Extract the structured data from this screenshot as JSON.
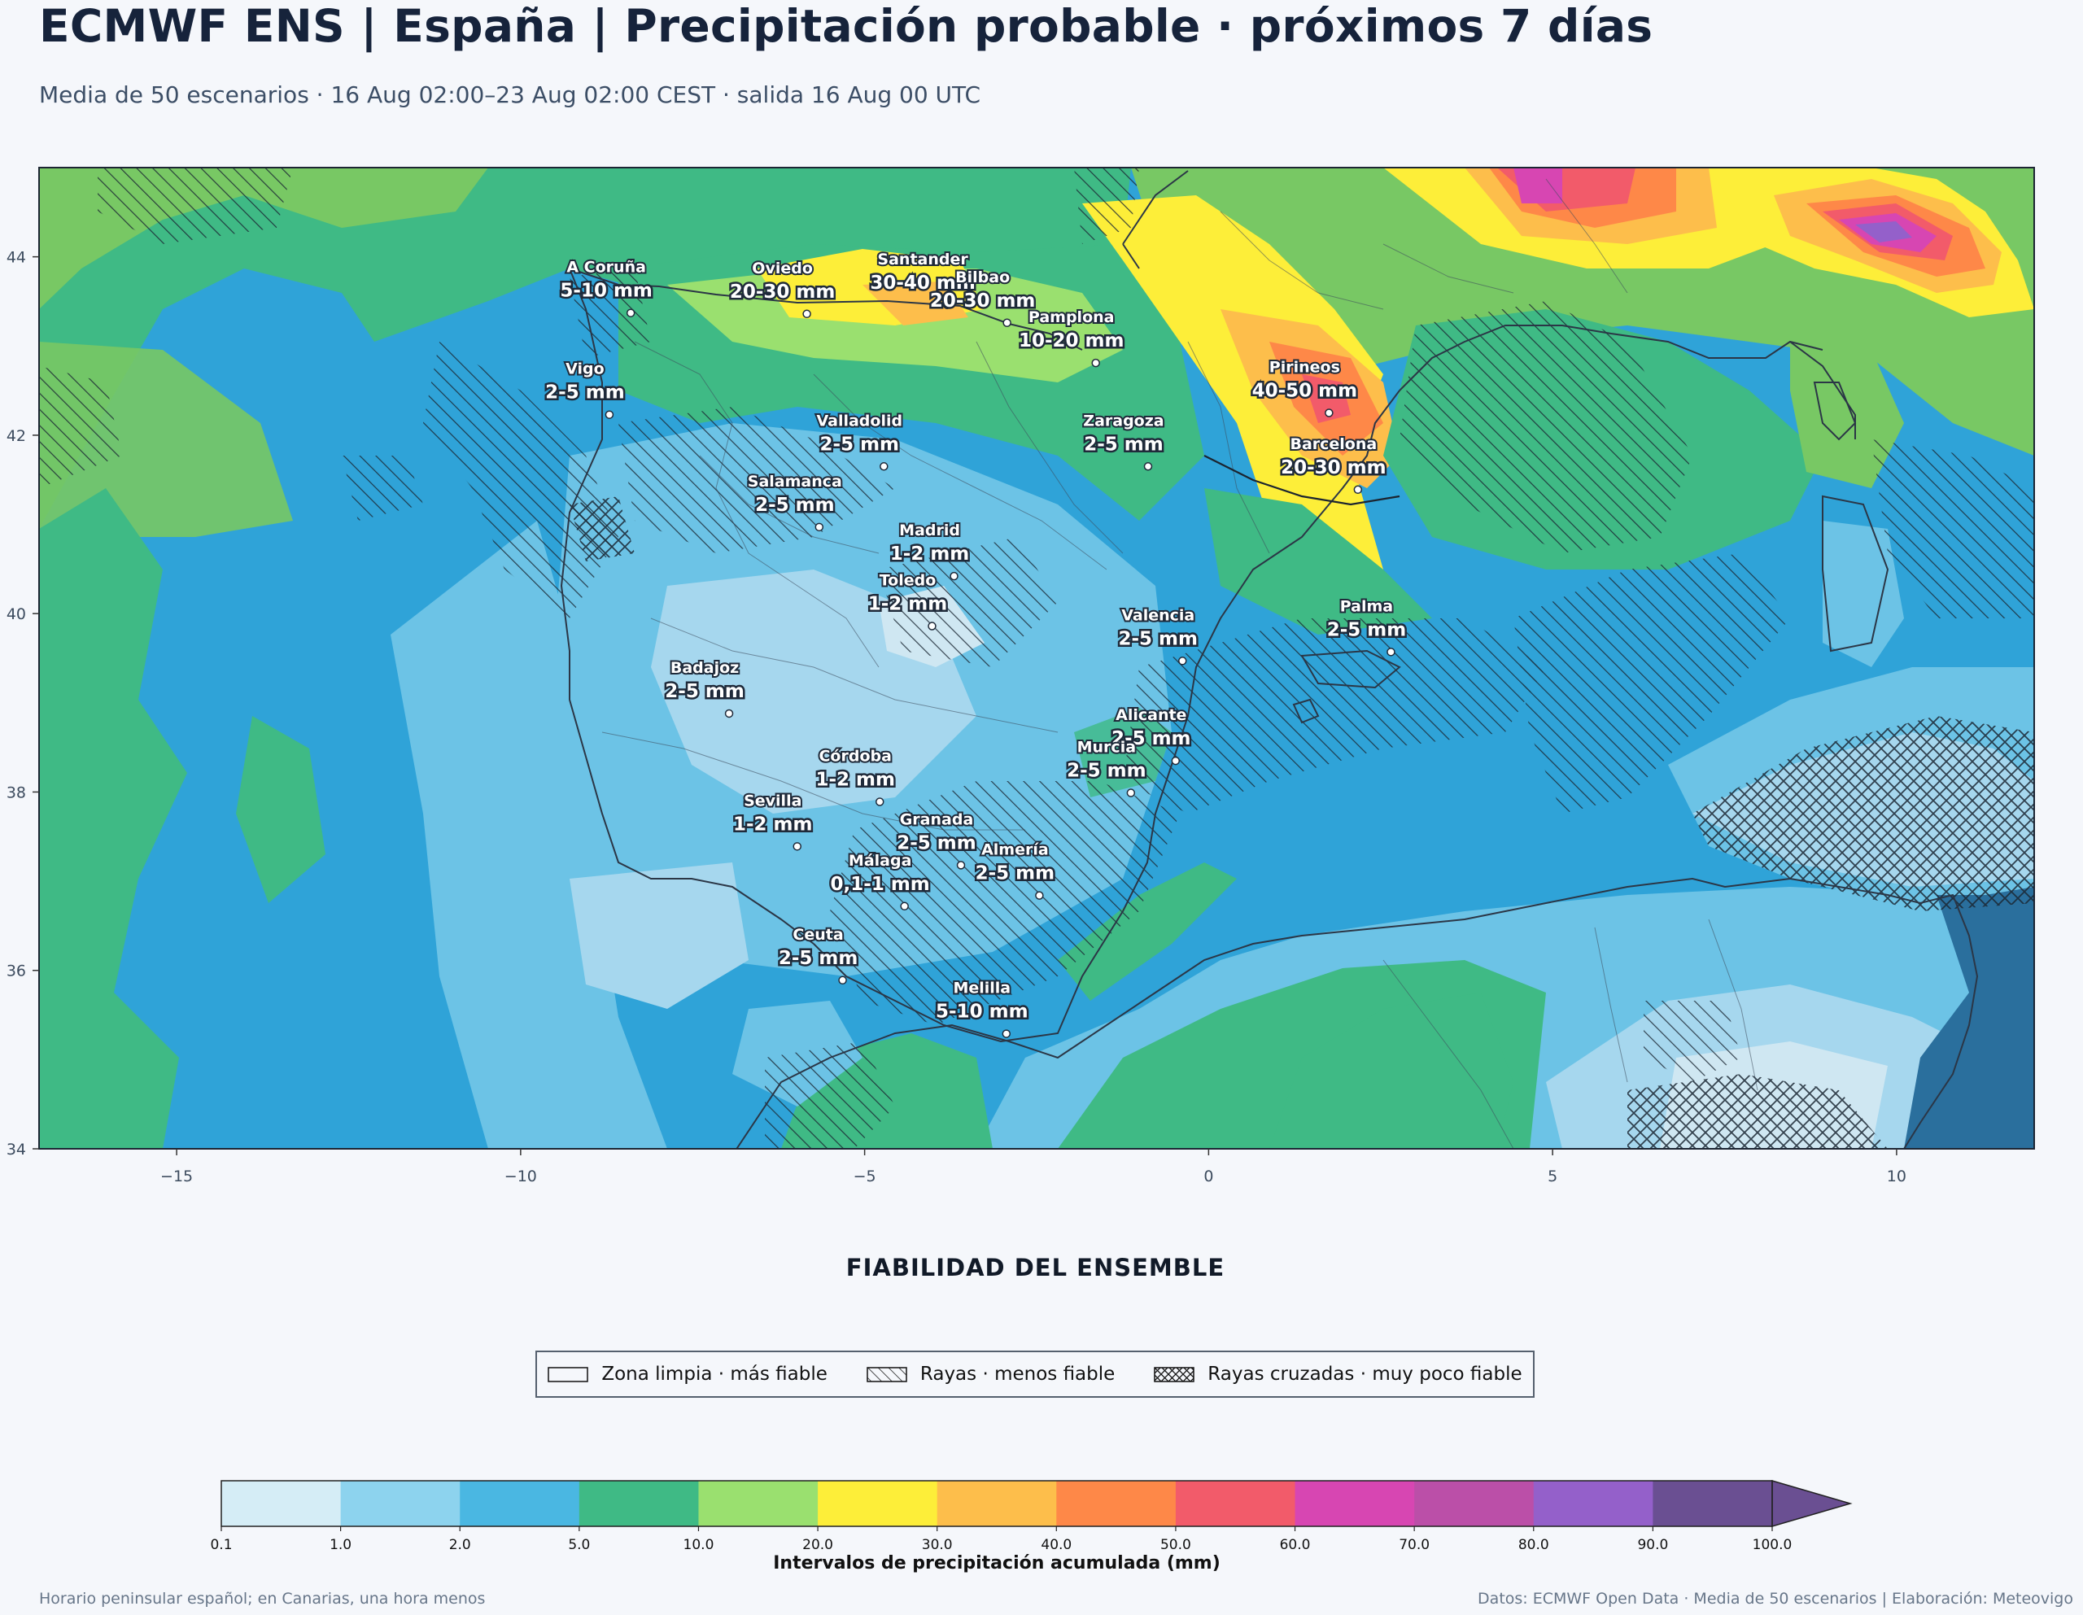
{
  "header": {
    "title": "ECMWF ENS | España | Precipitación probable · próximos 7 días",
    "subtitle": "Media de 50 escenarios · 16 Aug 02:00–23 Aug 02:00 CEST · salida 16 Aug 00 UTC"
  },
  "map": {
    "lon_range": [
      -17,
      12
    ],
    "lat_range": [
      34,
      45
    ],
    "x_ticks": [
      {
        "value": -15,
        "label": "−15"
      },
      {
        "value": -10,
        "label": "−10"
      },
      {
        "value": -5,
        "label": "−5"
      },
      {
        "value": 0,
        "label": "0"
      },
      {
        "value": 5,
        "label": "5"
      },
      {
        "value": 10,
        "label": "10"
      }
    ],
    "y_ticks": [
      {
        "value": 34,
        "label": "34"
      },
      {
        "value": 36,
        "label": "36"
      },
      {
        "value": 38,
        "label": "38"
      },
      {
        "value": 40,
        "label": "40"
      },
      {
        "value": 42,
        "label": "42"
      },
      {
        "value": 44,
        "label": "44"
      }
    ],
    "cities": [
      {
        "name": "A Coruña",
        "value": "5-10 mm",
        "lon": -8.4,
        "lat": 43.37
      },
      {
        "name": "Oviedo",
        "value": "20-30 mm",
        "lon": -5.84,
        "lat": 43.36
      },
      {
        "name": "Santander",
        "value": "30-40 mm",
        "lon": -3.8,
        "lat": 43.46
      },
      {
        "name": "Pamplona",
        "value": "10-20 mm",
        "lon": -1.64,
        "lat": 42.81
      },
      {
        "name": "Bilbao",
        "value": "20-30 mm",
        "lon": -2.93,
        "lat": 43.26
      },
      {
        "name": "Pirineos",
        "value": "40-50 mm",
        "lon": 1.75,
        "lat": 42.25
      },
      {
        "name": "Vigo",
        "value": "2-5 mm",
        "lon": -8.71,
        "lat": 42.23
      },
      {
        "name": "Valladolid",
        "value": "2-5 mm",
        "lon": -4.72,
        "lat": 41.65
      },
      {
        "name": "Zaragoza",
        "value": "2-5 mm",
        "lon": -0.88,
        "lat": 41.65
      },
      {
        "name": "Barcelona",
        "value": "20-30 mm",
        "lon": 2.17,
        "lat": 41.39
      },
      {
        "name": "Salamanca",
        "value": "2-5 mm",
        "lon": -5.66,
        "lat": 40.97
      },
      {
        "name": "Madrid",
        "value": "1-2 mm",
        "lon": -3.7,
        "lat": 40.42
      },
      {
        "name": "Valencia",
        "value": "2-5 mm",
        "lon": -0.38,
        "lat": 39.47
      },
      {
        "name": "Toledo",
        "value": "1-2 mm",
        "lon": -4.02,
        "lat": 39.86
      },
      {
        "name": "Badajoz",
        "value": "2-5 mm",
        "lon": -6.97,
        "lat": 38.88
      },
      {
        "name": "Palma",
        "value": "2-5 mm",
        "lon": 2.65,
        "lat": 39.57
      },
      {
        "name": "Córdoba",
        "value": "1-2 mm",
        "lon": -4.78,
        "lat": 37.89
      },
      {
        "name": "Alicante",
        "value": "2-5 mm",
        "lon": -0.48,
        "lat": 38.35
      },
      {
        "name": "Murcia",
        "value": "2-5 mm",
        "lon": -1.13,
        "lat": 37.99
      },
      {
        "name": "Granada",
        "value": "2-5 mm",
        "lon": -3.6,
        "lat": 37.18
      },
      {
        "name": "Sevilla",
        "value": "1-2 mm",
        "lon": -5.98,
        "lat": 37.39
      },
      {
        "name": "Málaga",
        "value": "0,1-1 mm",
        "lon": -4.42,
        "lat": 36.72
      },
      {
        "name": "Almería",
        "value": "2-5 mm",
        "lon": -2.46,
        "lat": 36.84
      },
      {
        "name": "Ceuta",
        "value": "2-5 mm",
        "lon": -5.32,
        "lat": 35.89
      },
      {
        "name": "Melilla",
        "value": "5-10 mm",
        "lon": -2.94,
        "lat": 35.29
      }
    ]
  },
  "reliability": {
    "title": "FIABILIDAD DEL ENSEMBLE",
    "items": [
      {
        "pattern": "clear",
        "label": "Zona limpia · más fiable"
      },
      {
        "pattern": "hatch",
        "label": "Rayas · menos fiable"
      },
      {
        "pattern": "crosshatch",
        "label": "Rayas cruzadas · muy poco fiable"
      }
    ]
  },
  "colorbar": {
    "label": "Intervalos de precipitación acumulada (mm)",
    "bounds": [
      "0.1",
      "1.0",
      "2.0",
      "5.0",
      "10.0",
      "20.0",
      "30.0",
      "40.0",
      "50.0",
      "60.0",
      "70.0",
      "80.0",
      "90.0",
      "100.0"
    ],
    "colors": [
      "#d5edf6",
      "#8dd3ee",
      "#4ab7e2",
      "#3fba85",
      "#9ae06f",
      "#fdee39",
      "#fdbe4b",
      "#fe8848",
      "#f25b6a",
      "#d746b2",
      "#bb4fa8",
      "#9460ca",
      "#6a4f92"
    ],
    "extend_color": "#6a4f92"
  },
  "footer": {
    "left": "Horario peninsular español; en Canarias, una hora menos",
    "right": "Datos: ECMWF Open Data · Media de 50 escenarios | Elaboración: Meteovigo"
  }
}
